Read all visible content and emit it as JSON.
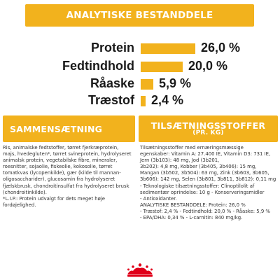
{
  "analytical": {
    "heading": "ANALYTISKE BESTANDDELE",
    "rows": [
      {
        "label": "Protein",
        "value": "26,0 %",
        "percent": 26.0
      },
      {
        "label": "Fedtindhold",
        "value": "20,0 %",
        "percent": 20.0
      },
      {
        "label": "Råaske",
        "value": "5,9 %",
        "percent": 5.9
      },
      {
        "label": "Træstof",
        "value": "2,4 %",
        "percent": 2.4
      }
    ],
    "bar_color": "#f2b21d"
  },
  "composition": {
    "heading": "SAMMENSÆTNING",
    "text": "Ris, animalske fedtstoffer, tørret fjerkræprotein,\nmajs, hvedegluten*, tørret svineprotein, hydrolyseret\nanimalsk protein, vegetabilske fibre, mineraler,\nroesnitter, sojaolie, fiskeolie, kokosolie, tørret\ntomatkvas (lycopenkilde), gær (kilde til mannan-\noligosaccharider), glucosamin fra hydrolyseret\nfjælskbrusk, chondroitinsulfat fra hydrolyseret brusk (chondroitinkilde).\n*L.I.P.: Protein udvalgt for dets meget høje\nfordøjelighed."
  },
  "additives": {
    "heading": "TILSÆTNINGSSTOFFER",
    "subheading": "(pr. kg)",
    "text": "Tilsætningsstoffer med ernæringsmæssige\negenskaber: Vitamin A: 27.400 IE, Vitamin D3: 731 IE,\nJern (3b103): 48 mg, Jod (3b201,\n3b202): 4,8 mg, Kobber (3b405, 3b406): 15 mg,\nMangan (3b502, 3b504): 63 mg, Zink (3b603, 3b605,\n3b606): 142 mg, Selen (3b801, 3b811, 3b812): 0,11 mg\n- Teknologiske tilsætningsstoffer: Clinoptilolit af\nsedimentær oprindelse: 10 g - Konserveringsmidler\n- Antioxidanter.\nANALYTISKE BESTANDDELE: Protein: 26,0 %\n- Træstof: 2,4 % - Fedtindhold: 20,0 % - Råaske: 5,9 %\n- EPA/DHA: 0,34 % - L-carnitin: 840 mg/kg."
  },
  "brand": {
    "logo_name": "royal-canin-crown-logo",
    "logo_color": "#e0001a"
  }
}
